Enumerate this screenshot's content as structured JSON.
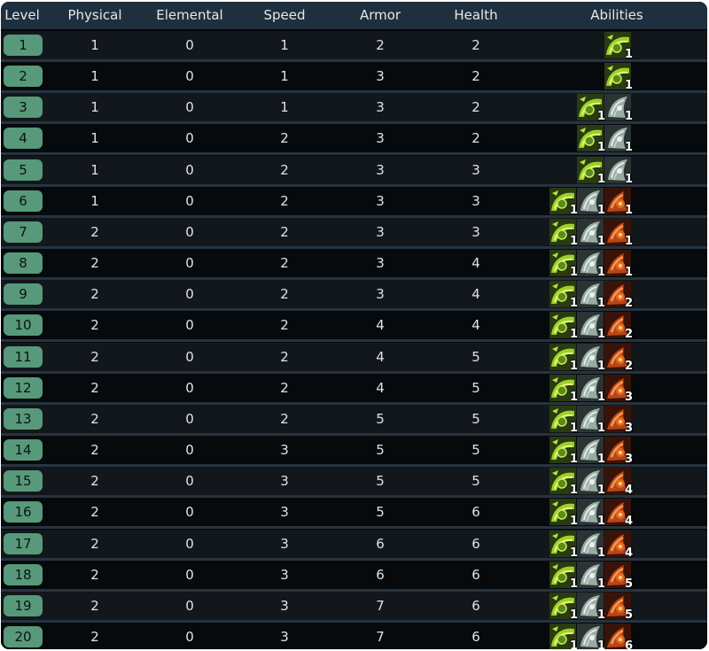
{
  "headers": [
    "Level",
    "Physical",
    "Elemental",
    "Speed",
    "Armor",
    "Health",
    "Abilities"
  ],
  "ability_icons": {
    "a1": "green-claw-icon",
    "a2": "gray-spirit-icon",
    "a3": "fire-horn-icon"
  },
  "rows": [
    {
      "level": "1",
      "physical": "1",
      "elemental": "0",
      "speed": "1",
      "armor": "2",
      "health": "2",
      "abilities": [
        {
          "icon": "a1",
          "count": "1"
        }
      ]
    },
    {
      "level": "2",
      "physical": "1",
      "elemental": "0",
      "speed": "1",
      "armor": "3",
      "health": "2",
      "abilities": [
        {
          "icon": "a1",
          "count": "1"
        }
      ]
    },
    {
      "level": "3",
      "physical": "1",
      "elemental": "0",
      "speed": "1",
      "armor": "3",
      "health": "2",
      "abilities": [
        {
          "icon": "a1",
          "count": "1"
        },
        {
          "icon": "a2",
          "count": "1"
        }
      ]
    },
    {
      "level": "4",
      "physical": "1",
      "elemental": "0",
      "speed": "2",
      "armor": "3",
      "health": "2",
      "abilities": [
        {
          "icon": "a1",
          "count": "1"
        },
        {
          "icon": "a2",
          "count": "1"
        }
      ]
    },
    {
      "level": "5",
      "physical": "1",
      "elemental": "0",
      "speed": "2",
      "armor": "3",
      "health": "3",
      "abilities": [
        {
          "icon": "a1",
          "count": "1"
        },
        {
          "icon": "a2",
          "count": "1"
        }
      ]
    },
    {
      "level": "6",
      "physical": "1",
      "elemental": "0",
      "speed": "2",
      "armor": "3",
      "health": "3",
      "abilities": [
        {
          "icon": "a1",
          "count": "1"
        },
        {
          "icon": "a2",
          "count": "1"
        },
        {
          "icon": "a3",
          "count": "1"
        }
      ]
    },
    {
      "level": "7",
      "physical": "2",
      "elemental": "0",
      "speed": "2",
      "armor": "3",
      "health": "3",
      "abilities": [
        {
          "icon": "a1",
          "count": "1"
        },
        {
          "icon": "a2",
          "count": "1"
        },
        {
          "icon": "a3",
          "count": "1"
        }
      ]
    },
    {
      "level": "8",
      "physical": "2",
      "elemental": "0",
      "speed": "2",
      "armor": "3",
      "health": "4",
      "abilities": [
        {
          "icon": "a1",
          "count": "1"
        },
        {
          "icon": "a2",
          "count": "1"
        },
        {
          "icon": "a3",
          "count": "1"
        }
      ]
    },
    {
      "level": "9",
      "physical": "2",
      "elemental": "0",
      "speed": "2",
      "armor": "3",
      "health": "4",
      "abilities": [
        {
          "icon": "a1",
          "count": "1"
        },
        {
          "icon": "a2",
          "count": "1"
        },
        {
          "icon": "a3",
          "count": "2"
        }
      ]
    },
    {
      "level": "10",
      "physical": "2",
      "elemental": "0",
      "speed": "2",
      "armor": "4",
      "health": "4",
      "abilities": [
        {
          "icon": "a1",
          "count": "1"
        },
        {
          "icon": "a2",
          "count": "1"
        },
        {
          "icon": "a3",
          "count": "2"
        }
      ]
    },
    {
      "level": "11",
      "physical": "2",
      "elemental": "0",
      "speed": "2",
      "armor": "4",
      "health": "5",
      "abilities": [
        {
          "icon": "a1",
          "count": "1"
        },
        {
          "icon": "a2",
          "count": "1"
        },
        {
          "icon": "a3",
          "count": "2"
        }
      ]
    },
    {
      "level": "12",
      "physical": "2",
      "elemental": "0",
      "speed": "2",
      "armor": "4",
      "health": "5",
      "abilities": [
        {
          "icon": "a1",
          "count": "1"
        },
        {
          "icon": "a2",
          "count": "1"
        },
        {
          "icon": "a3",
          "count": "3"
        }
      ]
    },
    {
      "level": "13",
      "physical": "2",
      "elemental": "0",
      "speed": "2",
      "armor": "5",
      "health": "5",
      "abilities": [
        {
          "icon": "a1",
          "count": "1"
        },
        {
          "icon": "a2",
          "count": "1"
        },
        {
          "icon": "a3",
          "count": "3"
        }
      ]
    },
    {
      "level": "14",
      "physical": "2",
      "elemental": "0",
      "speed": "3",
      "armor": "5",
      "health": "5",
      "abilities": [
        {
          "icon": "a1",
          "count": "1"
        },
        {
          "icon": "a2",
          "count": "1"
        },
        {
          "icon": "a3",
          "count": "3"
        }
      ]
    },
    {
      "level": "15",
      "physical": "2",
      "elemental": "0",
      "speed": "3",
      "armor": "5",
      "health": "5",
      "abilities": [
        {
          "icon": "a1",
          "count": "1"
        },
        {
          "icon": "a2",
          "count": "1"
        },
        {
          "icon": "a3",
          "count": "4"
        }
      ]
    },
    {
      "level": "16",
      "physical": "2",
      "elemental": "0",
      "speed": "3",
      "armor": "5",
      "health": "6",
      "abilities": [
        {
          "icon": "a1",
          "count": "1"
        },
        {
          "icon": "a2",
          "count": "1"
        },
        {
          "icon": "a3",
          "count": "4"
        }
      ]
    },
    {
      "level": "17",
      "physical": "2",
      "elemental": "0",
      "speed": "3",
      "armor": "6",
      "health": "6",
      "abilities": [
        {
          "icon": "a1",
          "count": "1"
        },
        {
          "icon": "a2",
          "count": "1"
        },
        {
          "icon": "a3",
          "count": "4"
        }
      ]
    },
    {
      "level": "18",
      "physical": "2",
      "elemental": "0",
      "speed": "3",
      "armor": "6",
      "health": "6",
      "abilities": [
        {
          "icon": "a1",
          "count": "1"
        },
        {
          "icon": "a2",
          "count": "1"
        },
        {
          "icon": "a3",
          "count": "5"
        }
      ]
    },
    {
      "level": "19",
      "physical": "2",
      "elemental": "0",
      "speed": "3",
      "armor": "7",
      "health": "6",
      "abilities": [
        {
          "icon": "a1",
          "count": "1"
        },
        {
          "icon": "a2",
          "count": "1"
        },
        {
          "icon": "a3",
          "count": "5"
        }
      ]
    },
    {
      "level": "20",
      "physical": "2",
      "elemental": "0",
      "speed": "3",
      "armor": "7",
      "health": "6",
      "abilities": [
        {
          "icon": "a1",
          "count": "1"
        },
        {
          "icon": "a2",
          "count": "1"
        },
        {
          "icon": "a3",
          "count": "6"
        }
      ]
    }
  ]
}
